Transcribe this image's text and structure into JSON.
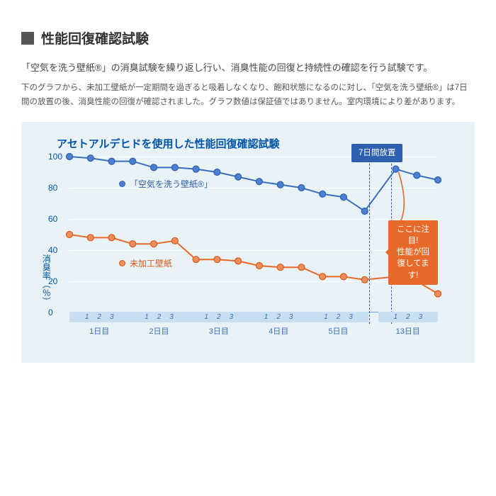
{
  "section": {
    "heading": "性能回復確認試験",
    "intro": "「空気を洗う壁紙®」の消臭試験を繰り返し行い、消臭性能の回復と持続性の確認を行う試験です。",
    "subtext": "下のグラフから、未加工壁紙が一定期間を過ぎると吸着しなくなり、飽和状態になるのに対し、「空気を洗う壁紙®」は7日間の放置の後、消臭性能の回復が確認されました。グラフ数値は保証値ではありません。室内環境により差があります。"
  },
  "chart": {
    "title": "アセトアルデヒドを使用した性能回復確認試験",
    "ylabel": "消臭率（％）",
    "background": "#e8f2f7",
    "grid_color": "#ffffff",
    "ylim": [
      0,
      100
    ],
    "yticks": [
      0,
      20,
      40,
      60,
      80,
      100
    ],
    "xsegments": [
      {
        "day": "1日目",
        "subs": [
          "1",
          "2",
          "3"
        ]
      },
      {
        "day": "2日目",
        "subs": [
          "1",
          "2",
          "3"
        ]
      },
      {
        "day": "3日目",
        "subs": [
          "1",
          "2",
          "3"
        ]
      },
      {
        "day": "4日目",
        "subs": [
          "1",
          "2",
          "3"
        ]
      },
      {
        "day": "5日目",
        "subs": [
          "1",
          "2",
          "3"
        ]
      },
      {
        "day": "13日目",
        "subs": [
          "1",
          "2",
          "3"
        ]
      }
    ],
    "series": {
      "blue": {
        "label": "「空気を洗う壁紙®」",
        "color": "#3a6fbf",
        "marker_fill": "#4b7fd0",
        "marker_stroke": "#2e5fb0",
        "values": [
          100,
          99,
          97,
          97,
          93,
          93,
          92,
          90,
          87,
          84,
          82,
          80,
          76,
          74,
          65,
          92,
          88,
          85
        ]
      },
      "orange": {
        "label": "未加工壁紙",
        "color": "#e86a2a",
        "marker_fill": "#ef8d5b",
        "marker_stroke": "#d65a1c",
        "values": [
          50,
          48,
          48,
          44,
          44,
          46,
          34,
          34,
          33,
          30,
          29,
          29,
          23,
          23,
          21,
          23,
          20,
          12
        ]
      }
    },
    "break_index": 15,
    "annotations": {
      "blue_label": "7日間放置",
      "orange_label_l1": "ここに注目!",
      "orange_label_l2": "性能が回復してます!"
    }
  }
}
